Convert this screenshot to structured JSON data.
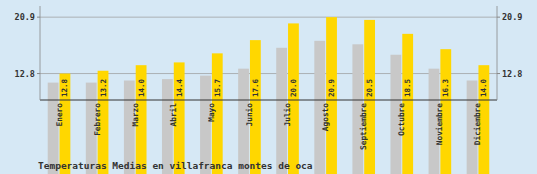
{
  "chart_data": {
    "type": "bar",
    "title": "Temperaturas Medias en villafranca montes de oca",
    "categories": [
      "Enero",
      "Febrero",
      "Marzo",
      "Abril",
      "Mayo",
      "Junio",
      "Julio",
      "Agosto",
      "Septiembre",
      "Octubre",
      "Noviembre",
      "Diciembre"
    ],
    "series": [
      {
        "color": "#C8C8C8",
        "values": [
          11.5,
          11.5,
          11.8,
          12.0,
          12.5,
          13.5,
          16.5,
          17.5,
          17.0,
          15.5,
          13.5,
          11.8
        ]
      },
      {
        "color": "#FFD700",
        "data_labels": true,
        "values": [
          12.8,
          13.2,
          14.0,
          14.4,
          15.7,
          17.6,
          20.0,
          20.9,
          20.5,
          18.5,
          16.3,
          14.0
        ]
      }
    ],
    "ylim": [
      9.0,
      22.5
    ],
    "yticks": [
      12.8,
      20.9
    ],
    "grid": true
  }
}
